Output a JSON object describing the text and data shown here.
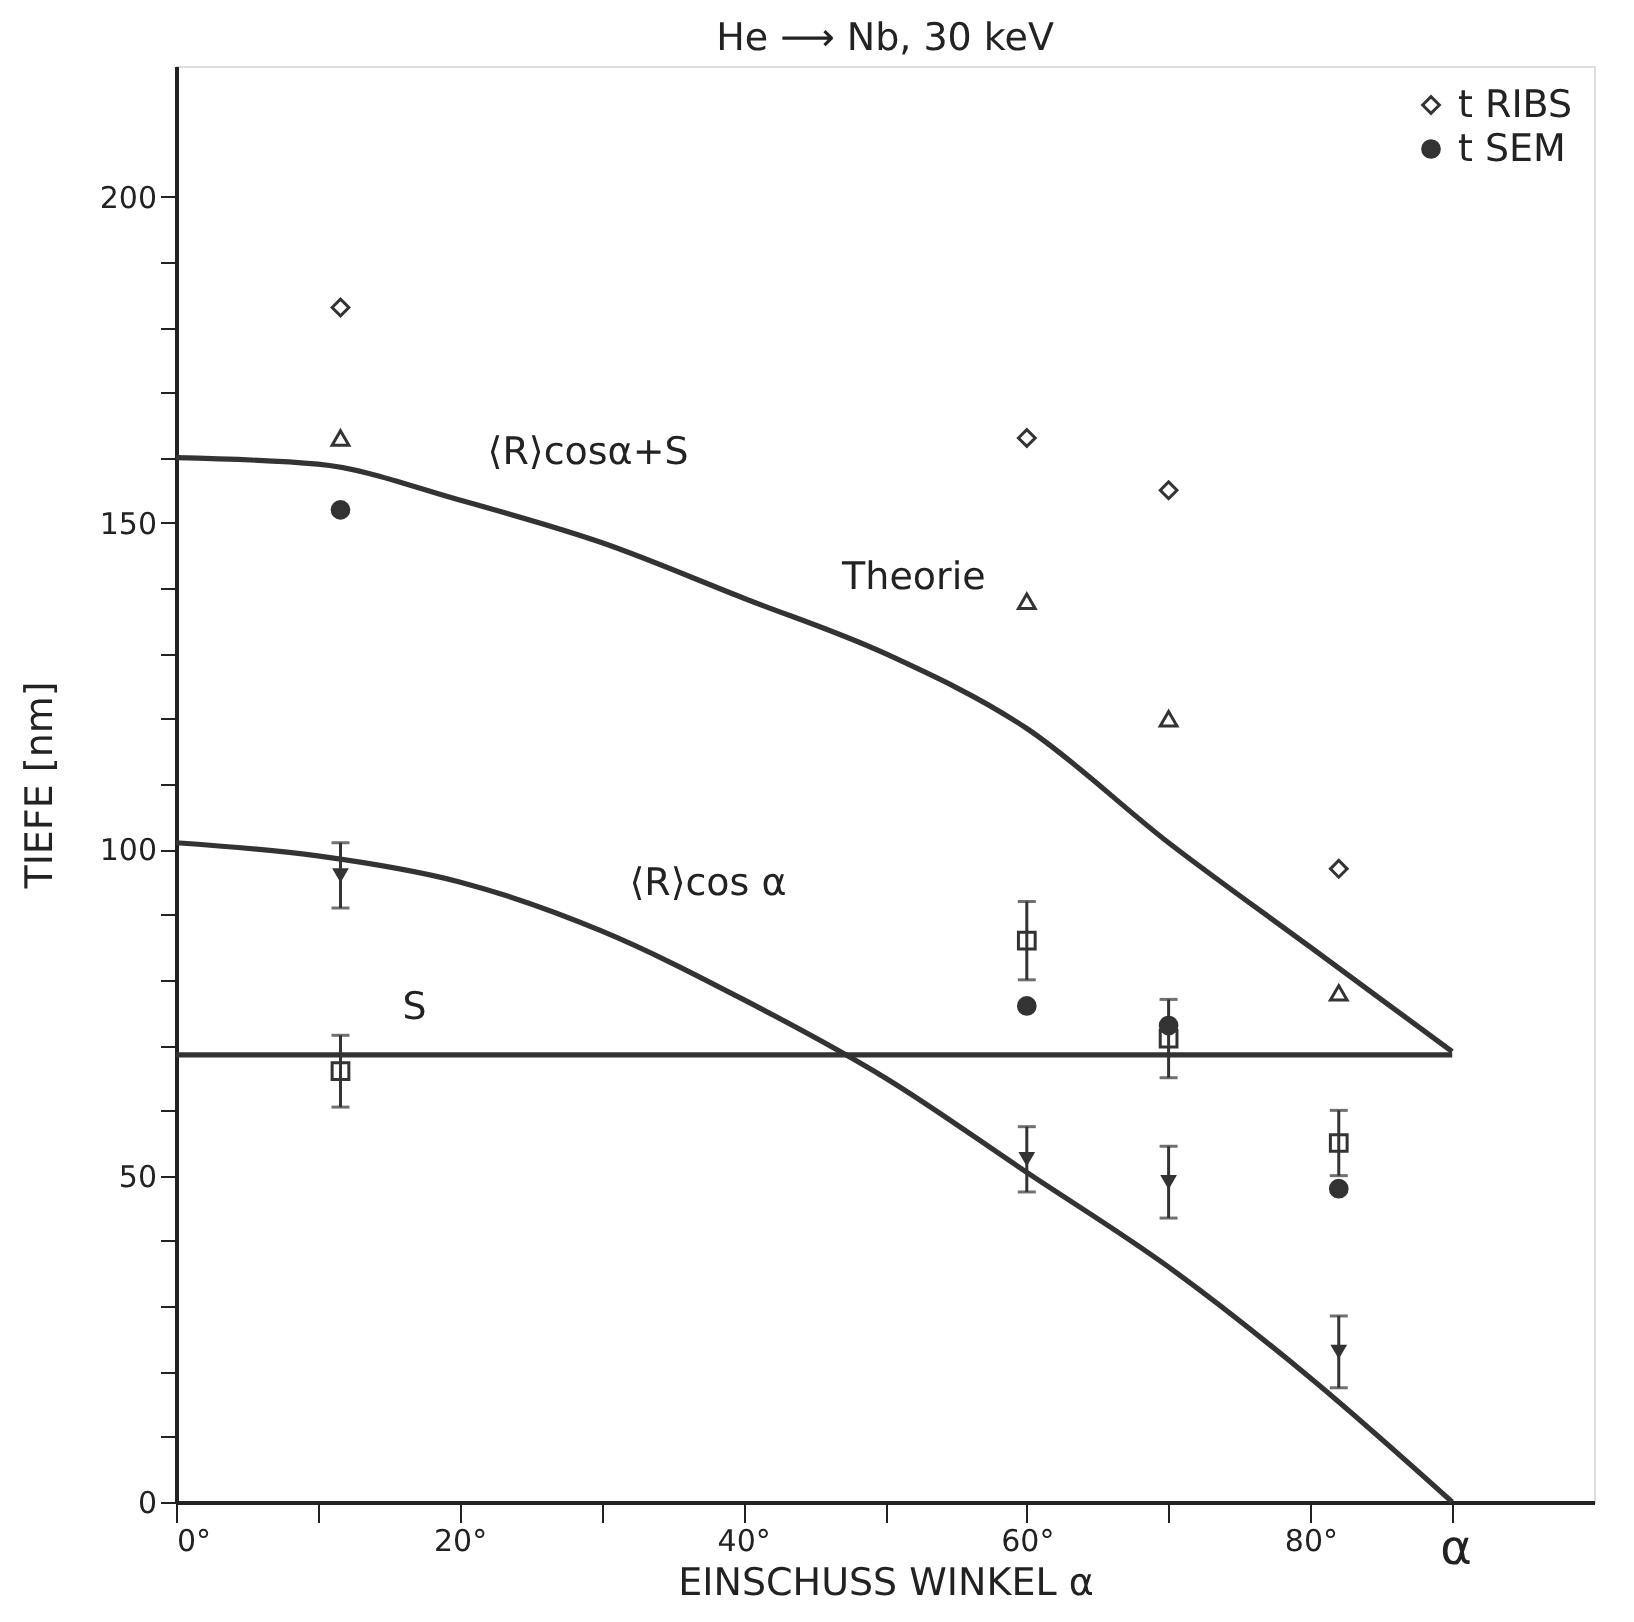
{
  "chart_data": {
    "type": "scatter",
    "title": "He ⟶ Nb, 30 keV",
    "xlabel": "EINSCHUSS WINKEL α",
    "ylabel": "TIEFE [nm]",
    "xlim": [
      0,
      100
    ],
    "ylim": [
      0,
      220
    ],
    "xticks": [
      {
        "value": 0,
        "label": "0°"
      },
      {
        "value": 10,
        "label": null
      },
      {
        "value": 20,
        "label": "20°"
      },
      {
        "value": 30,
        "label": null
      },
      {
        "value": 40,
        "label": "40°"
      },
      {
        "value": 50,
        "label": null
      },
      {
        "value": 60,
        "label": "60°"
      },
      {
        "value": 70,
        "label": null
      },
      {
        "value": 80,
        "label": "80°"
      },
      {
        "value": 90,
        "label": null
      }
    ],
    "yticks": [
      0,
      {
        "value": 10,
        "label": null
      },
      {
        "value": 20,
        "label": null
      },
      {
        "value": 30,
        "label": null
      },
      {
        "value": 40,
        "label": null
      },
      50,
      {
        "value": 60,
        "label": null
      },
      {
        "value": 70,
        "label": null
      },
      {
        "value": 80,
        "label": null
      },
      {
        "value": 90,
        "label": null
      },
      100,
      {
        "value": 110,
        "label": null
      },
      {
        "value": 120,
        "label": null
      },
      {
        "value": 130,
        "label": null
      },
      {
        "value": 140,
        "label": null
      },
      150,
      {
        "value": 160,
        "label": null
      },
      {
        "value": 170,
        "label": null
      },
      {
        "value": 180,
        "label": null
      },
      {
        "value": 190,
        "label": null
      },
      200
    ],
    "grid": false,
    "legend": "top right",
    "series": [
      {
        "name": "t RIBS",
        "marker": "diamond",
        "color": "#333333",
        "x": [
          11.6,
          60,
          70,
          82
        ],
        "values": [
          183,
          163,
          155,
          97
        ]
      },
      {
        "name": "t SEM",
        "marker": "circle",
        "color": "#333333",
        "x": [
          11.6,
          60,
          70,
          82
        ],
        "values": [
          152,
          76,
          73,
          48
        ]
      },
      {
        "marker": "triangle",
        "color": "#333333",
        "x": [
          11.6,
          60,
          70,
          82
        ],
        "values": [
          163,
          138,
          120,
          78
        ]
      },
      {
        "marker": "square",
        "color": "#333333",
        "x": [
          11.6,
          60,
          70,
          82
        ],
        "values": [
          66,
          86,
          71,
          55
        ],
        "errors": [
          5.5,
          6,
          6,
          5
        ]
      },
      {
        "marker": "triangle-down",
        "color": "#333333",
        "x": [
          11.6,
          60,
          70,
          82
        ],
        "values": [
          96,
          52.5,
          49,
          23
        ],
        "errors": [
          5,
          5,
          5.5,
          5.5
        ]
      },
      {
        "type": "line",
        "color": "#333333",
        "x": [
          0,
          10,
          20,
          30,
          40,
          50,
          60,
          70,
          80,
          90
        ],
        "values": [
          160,
          159,
          153.5,
          147,
          138.5,
          130,
          118.5,
          101,
          85,
          69
        ]
      },
      {
        "type": "line",
        "color": "#333333",
        "x": [
          0,
          10,
          20,
          30,
          40,
          50,
          60,
          70,
          80,
          90
        ],
        "values": [
          101,
          99,
          95,
          87.5,
          77,
          65,
          50.5,
          36,
          19,
          0
        ]
      },
      {
        "type": "line",
        "color": "#333333",
        "x": [
          0,
          90
        ],
        "values": [
          68.5,
          68.5
        ]
      }
    ],
    "annotations": [
      {
        "text": "⟨R⟩cosα+S",
        "x": 20,
        "y": 153.5
      },
      {
        "text": "Theorie",
        "x": 45,
        "y": 134.3
      },
      {
        "text": "⟨R⟩cos α",
        "x": 30,
        "y": 87.5
      },
      {
        "text": "S",
        "x": 14,
        "y": 68.5
      },
      "α"
    ]
  }
}
